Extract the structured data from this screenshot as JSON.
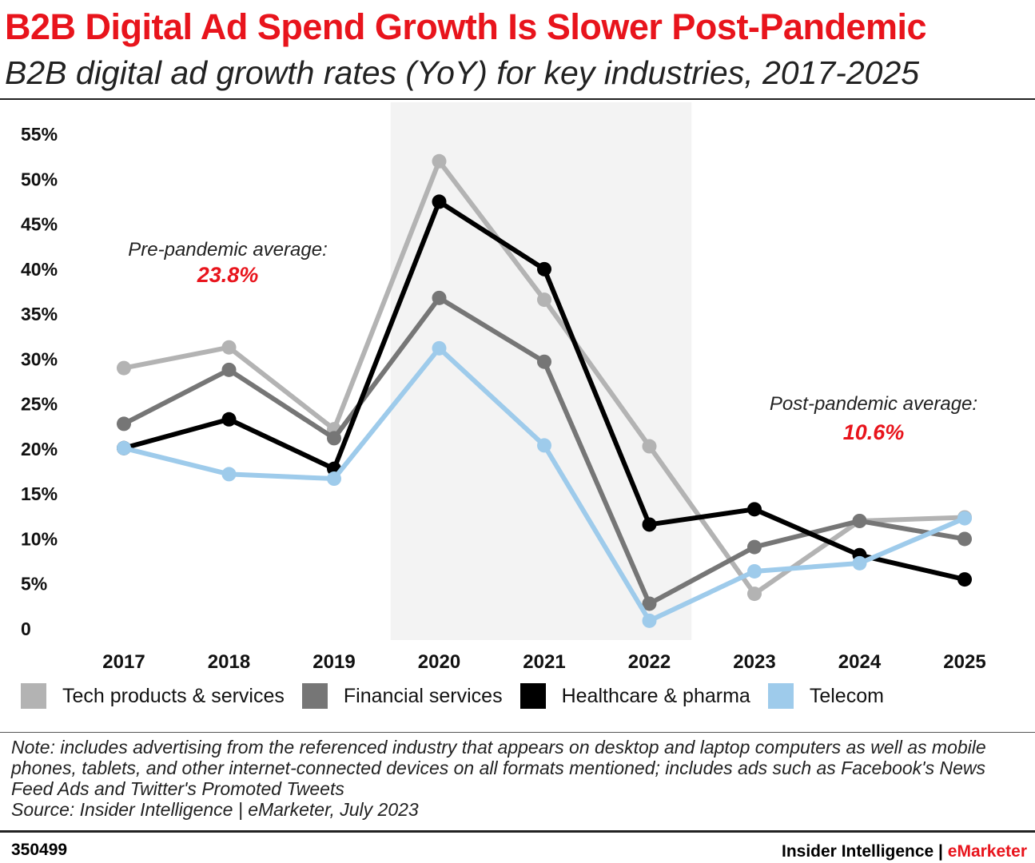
{
  "header": {
    "title": "B2B Digital Ad Spend Growth Is Slower Post-Pandemic",
    "subtitle": "B2B digital ad growth rates (YoY) for key industries, 2017-2025"
  },
  "chart_data": {
    "type": "line",
    "categories": [
      "2017",
      "2018",
      "2019",
      "2020",
      "2021",
      "2022",
      "2023",
      "2024",
      "2025"
    ],
    "y_ticks": [
      "0",
      "5%",
      "10%",
      "15%",
      "20%",
      "25%",
      "30%",
      "35%",
      "40%",
      "45%",
      "50%",
      "55%"
    ],
    "ylim": [
      0,
      55
    ],
    "grid": false,
    "legend_placement": "bottom",
    "shaded_region": [
      "2020",
      "2022"
    ],
    "series": [
      {
        "name": "Tech products & services",
        "color": "#b3b3b3",
        "values": [
          29.0,
          31.3,
          22.2,
          52.0,
          36.6,
          20.3,
          3.9,
          12.0,
          12.4
        ]
      },
      {
        "name": "Financial services",
        "color": "#767676",
        "values": [
          22.8,
          28.8,
          21.2,
          36.8,
          29.7,
          2.8,
          9.1,
          12.0,
          10.0
        ]
      },
      {
        "name": "Healthcare & pharma",
        "color": "#000000",
        "values": [
          20.1,
          23.3,
          17.8,
          47.5,
          40.0,
          11.6,
          13.3,
          8.2,
          5.5
        ]
      },
      {
        "name": "Telecom",
        "color": "#9ecbeb",
        "values": [
          20.1,
          17.2,
          16.7,
          31.2,
          20.4,
          0.9,
          6.4,
          7.3,
          12.3
        ]
      }
    ],
    "annotations": [
      {
        "label": "Pre-pandemic average:",
        "value": "23.8%"
      },
      {
        "label": "Post-pandemic average:",
        "value": "10.6%"
      }
    ]
  },
  "note": "Note: includes advertising from the referenced industry that appears on desktop and laptop computers as well as mobile phones, tablets, and other internet-connected devices on all formats mentioned; includes ads such as Facebook's News Feed Ads and Twitter's Promoted Tweets",
  "source": "Source: Insider Intelligence | eMarketer, July 2023",
  "footer": {
    "id": "350499",
    "brand_a": "Insider Intelligence | ",
    "brand_b": "eMarketer"
  }
}
